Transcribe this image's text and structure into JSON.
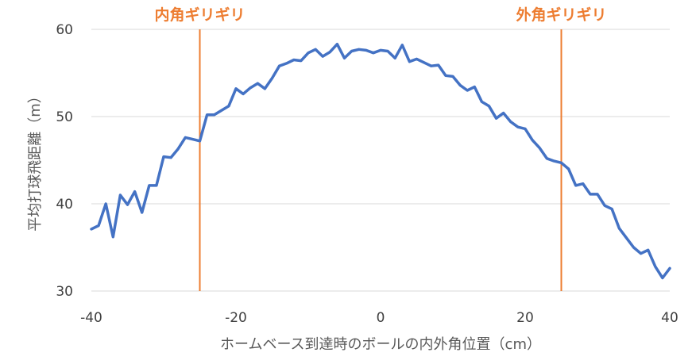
{
  "chart_data": {
    "type": "line",
    "title": "",
    "xlabel": "ホームベース到達時のボールの内外角位置（cm）",
    "ylabel": "平均打球飛距離（m）",
    "xlim": [
      -40,
      40
    ],
    "ylim": [
      30,
      60
    ],
    "x_ticks": [
      "-40",
      "-20",
      "0",
      "20",
      "40"
    ],
    "y_ticks": [
      "30",
      "40",
      "50",
      "60"
    ],
    "grid": "horizontal",
    "legend": "none",
    "colors": {
      "series": "#4472C4",
      "annotation": "#ED7D31",
      "grid": "#D9D9D9"
    },
    "series": [
      {
        "x": [
          -40,
          -39,
          -38,
          -37,
          -36,
          -35,
          -34,
          -33,
          -32,
          -31,
          -30,
          -29,
          -28,
          -27,
          -26,
          -25,
          -24,
          -23,
          -22,
          -21,
          -20,
          -19,
          -18,
          -17,
          -16,
          -15,
          -14,
          -13,
          -12,
          -11,
          -10,
          -9,
          -8,
          -7,
          -6,
          -5,
          -4,
          -3,
          -2,
          -1,
          0,
          1,
          2,
          3,
          4,
          5,
          6,
          7,
          8,
          9,
          10,
          11,
          12,
          13,
          14,
          15,
          16,
          17,
          18,
          19,
          20,
          21,
          22,
          23,
          24,
          25,
          26,
          27,
          28,
          29,
          30,
          31,
          32,
          33,
          34,
          35,
          36,
          37,
          38,
          39,
          40
        ],
        "y": [
          37.1,
          37.5,
          40.0,
          36.2,
          41.0,
          39.9,
          41.4,
          39.0,
          42.1,
          42.1,
          45.4,
          45.3,
          46.3,
          47.6,
          47.4,
          47.2,
          50.2,
          50.2,
          50.7,
          51.2,
          53.2,
          52.6,
          53.3,
          53.8,
          53.2,
          54.4,
          55.8,
          56.1,
          56.5,
          56.4,
          57.3,
          57.7,
          56.9,
          57.4,
          58.3,
          56.7,
          57.5,
          57.7,
          57.6,
          57.3,
          57.6,
          57.5,
          56.7,
          58.2,
          56.3,
          56.6,
          56.2,
          55.8,
          55.9,
          54.7,
          54.6,
          53.6,
          53.0,
          53.4,
          51.7,
          51.2,
          49.8,
          50.4,
          49.4,
          48.8,
          48.6,
          47.3,
          46.4,
          45.2,
          44.9,
          44.7,
          44.0,
          42.1,
          42.3,
          41.1,
          41.1,
          39.8,
          39.4,
          37.2,
          36.1,
          35.0,
          34.3,
          34.7,
          32.8,
          31.5,
          32.6
        ]
      }
    ],
    "annotations": [
      {
        "x": -25,
        "label": "内角ギリギリ"
      },
      {
        "x": 25,
        "label": "外角ギリギリ"
      }
    ]
  }
}
